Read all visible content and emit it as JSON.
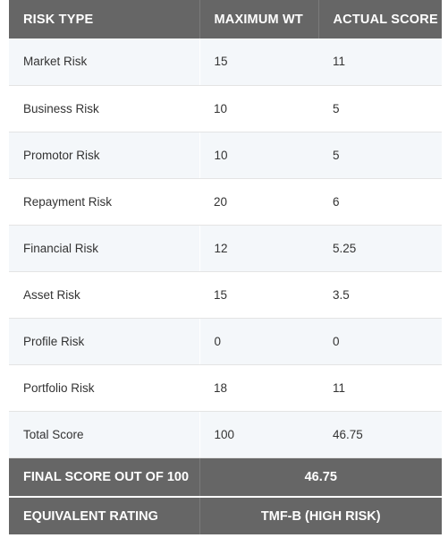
{
  "headers": {
    "risk_type": "RISK TYPE",
    "maximum_wt": "MAXIMUM WT",
    "actual_score": "ACTUAL SCORE"
  },
  "rows": [
    {
      "risk": "Market Risk",
      "max": "15",
      "actual": "11"
    },
    {
      "risk": "Business Risk",
      "max": "10",
      "actual": "5"
    },
    {
      "risk": "Promotor Risk",
      "max": "10",
      "actual": "5"
    },
    {
      "risk": "Repayment Risk",
      "max": "20",
      "actual": "6"
    },
    {
      "risk": "Financial Risk",
      "max": "12",
      "actual": "5.25"
    },
    {
      "risk": "Asset Risk",
      "max": "15",
      "actual": "3.5"
    },
    {
      "risk": "Profile Risk",
      "max": "0",
      "actual": "0"
    },
    {
      "risk": "Portfolio Risk",
      "max": "18",
      "actual": "11"
    },
    {
      "risk": "Total Score",
      "max": "100",
      "actual": "46.75"
    }
  ],
  "final_score": {
    "label": "FINAL SCORE OUT OF 100",
    "value": "46.75"
  },
  "equivalent_rating": {
    "label": "EQUIVALENT RATING",
    "value": "TMF-B (HIGH RISK)"
  }
}
